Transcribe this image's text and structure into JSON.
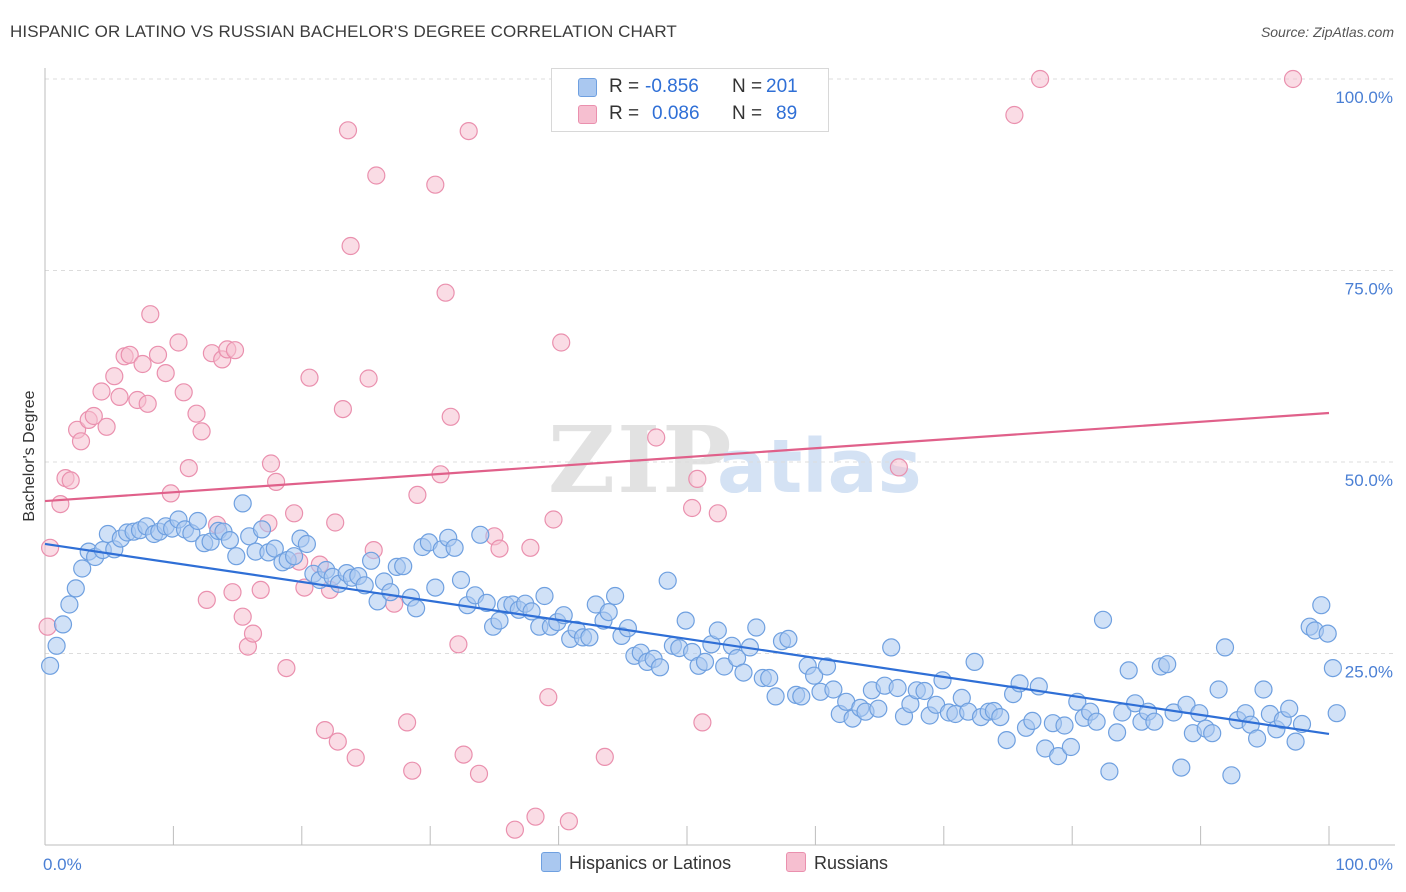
{
  "title": "HISPANIC OR LATINO VS RUSSIAN BACHELOR'S DEGREE CORRELATION CHART",
  "source": "Source: ZipAtlas.com",
  "colors": {
    "blue_fill": "#aac8f0",
    "blue_stroke": "#6fa0e0",
    "blue_line": "#2f6fd6",
    "pink_fill": "#f6bfd0",
    "pink_stroke": "#ea90ae",
    "pink_line": "#e0608a",
    "tick_text": "#4a7fd4",
    "grid": "#dcdcdc"
  },
  "legend": {
    "rows": [
      {
        "r_label": "R =",
        "r_value": "-0.856",
        "n_label": "N =",
        "n_value": "201",
        "swatch": "#aac8f0"
      },
      {
        "r_label": "R =",
        "r_value": "0.086",
        "n_label": "N =",
        "n_value": "89",
        "swatch": "#f6bfd0"
      }
    ]
  },
  "bottom_legend": {
    "hispanic": "Hispanics or Latinos",
    "russian": "Russians"
  },
  "chart_data": {
    "type": "scatter",
    "ylabel": "Bachelor's Degree",
    "xlim": [
      0,
      100
    ],
    "ylim": [
      0,
      100
    ],
    "x_tick_labels": [
      "0.0%",
      "100.0%"
    ],
    "y_tick_values": [
      25,
      50,
      75,
      100
    ],
    "y_tick_labels": [
      "25.0%",
      "50.0%",
      "75.0%",
      "100.0%"
    ],
    "grid": "horizontal dashed",
    "legend_position": "top-center",
    "series": [
      {
        "name": "Hispanics or Latinos",
        "color": "#aac8f0",
        "trend": {
          "x0": 0,
          "y0": 39.3,
          "x1": 100,
          "y1": 14.5
        },
        "points": [
          [
            0.4,
            23.4
          ],
          [
            0.9,
            26.0
          ],
          [
            1.4,
            28.8
          ],
          [
            1.9,
            31.4
          ],
          [
            2.4,
            33.5
          ],
          [
            2.9,
            36.1
          ],
          [
            3.4,
            38.3
          ],
          [
            3.9,
            37.6
          ],
          [
            4.5,
            38.5
          ],
          [
            4.9,
            40.6
          ],
          [
            5.4,
            38.6
          ],
          [
            5.9,
            40.0
          ],
          [
            6.4,
            40.8
          ],
          [
            6.9,
            40.9
          ],
          [
            7.4,
            41.1
          ],
          [
            7.9,
            41.6
          ],
          [
            8.5,
            40.6
          ],
          [
            8.9,
            40.9
          ],
          [
            9.4,
            41.6
          ],
          [
            9.9,
            41.3
          ],
          [
            10.4,
            42.5
          ],
          [
            10.9,
            41.2
          ],
          [
            11.4,
            40.7
          ],
          [
            11.9,
            42.3
          ],
          [
            12.4,
            39.4
          ],
          [
            12.9,
            39.6
          ],
          [
            13.5,
            41.0
          ],
          [
            13.9,
            40.9
          ],
          [
            14.4,
            39.8
          ],
          [
            14.9,
            37.7
          ],
          [
            15.4,
            44.6
          ],
          [
            15.9,
            40.3
          ],
          [
            16.4,
            38.3
          ],
          [
            16.9,
            41.2
          ],
          [
            17.4,
            38.2
          ],
          [
            17.9,
            38.7
          ],
          [
            18.5,
            36.9
          ],
          [
            18.9,
            37.2
          ],
          [
            19.4,
            37.7
          ],
          [
            19.9,
            40.0
          ],
          [
            20.4,
            39.3
          ],
          [
            20.9,
            35.4
          ],
          [
            21.4,
            34.6
          ],
          [
            21.9,
            35.9
          ],
          [
            22.4,
            35.0
          ],
          [
            22.9,
            34.1
          ],
          [
            23.5,
            35.5
          ],
          [
            23.9,
            34.9
          ],
          [
            24.4,
            35.1
          ],
          [
            24.9,
            33.9
          ],
          [
            25.4,
            37.1
          ],
          [
            25.9,
            31.8
          ],
          [
            26.4,
            34.4
          ],
          [
            26.9,
            33.0
          ],
          [
            27.4,
            36.3
          ],
          [
            27.9,
            36.4
          ],
          [
            28.5,
            32.3
          ],
          [
            28.9,
            30.9
          ],
          [
            29.4,
            38.9
          ],
          [
            29.9,
            39.5
          ],
          [
            30.4,
            33.6
          ],
          [
            30.9,
            38.6
          ],
          [
            31.4,
            40.1
          ],
          [
            31.9,
            38.8
          ],
          [
            32.4,
            34.6
          ],
          [
            32.9,
            31.3
          ],
          [
            33.5,
            32.6
          ],
          [
            33.9,
            40.5
          ],
          [
            34.4,
            31.6
          ],
          [
            34.9,
            28.5
          ],
          [
            35.4,
            29.3
          ],
          [
            35.9,
            31.3
          ],
          [
            36.4,
            31.4
          ],
          [
            36.9,
            30.7
          ],
          [
            37.4,
            31.5
          ],
          [
            37.9,
            30.5
          ],
          [
            38.5,
            28.5
          ],
          [
            38.9,
            32.5
          ],
          [
            39.4,
            28.5
          ],
          [
            39.9,
            29.1
          ],
          [
            40.4,
            30.0
          ],
          [
            40.9,
            26.9
          ],
          [
            41.4,
            28.1
          ],
          [
            41.9,
            27.1
          ],
          [
            42.4,
            27.1
          ],
          [
            42.9,
            31.4
          ],
          [
            43.5,
            29.3
          ],
          [
            43.9,
            30.4
          ],
          [
            44.4,
            32.5
          ],
          [
            44.9,
            27.3
          ],
          [
            45.4,
            28.3
          ],
          [
            45.9,
            24.7
          ],
          [
            46.4,
            25.1
          ],
          [
            46.9,
            23.9
          ],
          [
            47.4,
            24.3
          ],
          [
            47.9,
            23.2
          ],
          [
            48.5,
            34.5
          ],
          [
            48.9,
            26.0
          ],
          [
            49.4,
            25.7
          ],
          [
            49.9,
            29.3
          ],
          [
            50.4,
            25.2
          ],
          [
            50.9,
            23.4
          ],
          [
            51.4,
            23.9
          ],
          [
            51.9,
            26.2
          ],
          [
            52.4,
            28.0
          ],
          [
            52.9,
            23.3
          ],
          [
            53.5,
            26.0
          ],
          [
            53.9,
            24.4
          ],
          [
            54.4,
            22.5
          ],
          [
            54.9,
            25.8
          ],
          [
            55.4,
            28.4
          ],
          [
            55.9,
            21.8
          ],
          [
            56.4,
            21.8
          ],
          [
            56.9,
            19.4
          ],
          [
            57.4,
            26.6
          ],
          [
            57.9,
            26.9
          ],
          [
            58.5,
            19.6
          ],
          [
            58.9,
            19.4
          ],
          [
            59.4,
            23.4
          ],
          [
            59.9,
            22.1
          ],
          [
            60.4,
            20.0
          ],
          [
            60.9,
            23.3
          ],
          [
            61.4,
            20.3
          ],
          [
            61.9,
            17.1
          ],
          [
            62.4,
            18.7
          ],
          [
            62.9,
            16.5
          ],
          [
            63.5,
            17.9
          ],
          [
            63.9,
            17.4
          ],
          [
            64.4,
            20.2
          ],
          [
            64.9,
            17.8
          ],
          [
            65.4,
            20.8
          ],
          [
            65.9,
            25.8
          ],
          [
            66.4,
            20.5
          ],
          [
            66.9,
            16.8
          ],
          [
            67.4,
            18.4
          ],
          [
            67.9,
            20.2
          ],
          [
            68.5,
            20.1
          ],
          [
            68.9,
            16.9
          ],
          [
            69.4,
            18.3
          ],
          [
            69.9,
            21.5
          ],
          [
            70.4,
            17.3
          ],
          [
            70.9,
            17.1
          ],
          [
            71.4,
            19.2
          ],
          [
            71.9,
            17.4
          ],
          [
            72.4,
            23.9
          ],
          [
            72.9,
            16.7
          ],
          [
            73.5,
            17.4
          ],
          [
            73.9,
            17.5
          ],
          [
            74.4,
            16.7
          ],
          [
            74.9,
            13.7
          ],
          [
            75.4,
            19.7
          ],
          [
            75.9,
            21.1
          ],
          [
            76.4,
            15.3
          ],
          [
            76.9,
            16.2
          ],
          [
            77.4,
            20.7
          ],
          [
            77.9,
            12.6
          ],
          [
            78.5,
            15.9
          ],
          [
            78.9,
            11.6
          ],
          [
            79.4,
            15.6
          ],
          [
            79.9,
            12.8
          ],
          [
            80.4,
            18.7
          ],
          [
            80.9,
            16.6
          ],
          [
            81.4,
            17.4
          ],
          [
            81.9,
            16.1
          ],
          [
            82.4,
            29.4
          ],
          [
            82.9,
            9.6
          ],
          [
            83.5,
            14.7
          ],
          [
            83.9,
            17.3
          ],
          [
            84.4,
            22.8
          ],
          [
            84.9,
            18.5
          ],
          [
            85.4,
            16.1
          ],
          [
            85.9,
            17.4
          ],
          [
            86.4,
            16.1
          ],
          [
            86.9,
            23.3
          ],
          [
            87.4,
            23.6
          ],
          [
            87.9,
            17.3
          ],
          [
            88.5,
            10.1
          ],
          [
            88.9,
            18.3
          ],
          [
            89.4,
            14.6
          ],
          [
            89.9,
            17.2
          ],
          [
            90.4,
            15.2
          ],
          [
            90.9,
            14.6
          ],
          [
            91.4,
            20.3
          ],
          [
            91.9,
            25.8
          ],
          [
            92.4,
            9.1
          ],
          [
            92.9,
            16.3
          ],
          [
            93.5,
            17.2
          ],
          [
            93.9,
            15.7
          ],
          [
            94.4,
            13.9
          ],
          [
            94.9,
            20.3
          ],
          [
            95.4,
            17.1
          ],
          [
            95.9,
            15.1
          ],
          [
            96.4,
            16.3
          ],
          [
            96.9,
            17.8
          ],
          [
            97.4,
            13.5
          ],
          [
            97.9,
            15.8
          ],
          [
            98.5,
            28.5
          ],
          [
            98.9,
            28.0
          ],
          [
            99.4,
            31.3
          ],
          [
            99.9,
            27.6
          ],
          [
            100.3,
            23.1
          ],
          [
            100.6,
            17.2
          ]
        ]
      },
      {
        "name": "Russians",
        "color": "#f6bfd0",
        "trend": {
          "x0": 0,
          "y0": 44.9,
          "x1": 100,
          "y1": 56.4
        },
        "points": [
          [
            0.2,
            28.5
          ],
          [
            0.4,
            38.8
          ],
          [
            1.2,
            44.5
          ],
          [
            1.6,
            47.9
          ],
          [
            2.0,
            47.6
          ],
          [
            2.5,
            54.2
          ],
          [
            2.8,
            52.7
          ],
          [
            3.4,
            55.5
          ],
          [
            3.8,
            56.0
          ],
          [
            4.4,
            59.2
          ],
          [
            4.8,
            54.6
          ],
          [
            5.4,
            61.2
          ],
          [
            5.8,
            58.5
          ],
          [
            6.2,
            63.8
          ],
          [
            6.6,
            64.0
          ],
          [
            7.2,
            58.1
          ],
          [
            7.6,
            62.8
          ],
          [
            8.0,
            57.6
          ],
          [
            8.2,
            69.3
          ],
          [
            8.8,
            64.0
          ],
          [
            9.4,
            61.6
          ],
          [
            9.8,
            45.9
          ],
          [
            10.4,
            65.6
          ],
          [
            10.8,
            59.1
          ],
          [
            11.2,
            49.2
          ],
          [
            11.8,
            56.3
          ],
          [
            12.2,
            54.0
          ],
          [
            12.6,
            32.0
          ],
          [
            13.0,
            64.2
          ],
          [
            13.4,
            41.8
          ],
          [
            13.8,
            63.4
          ],
          [
            14.2,
            64.7
          ],
          [
            14.6,
            33.0
          ],
          [
            14.8,
            64.6
          ],
          [
            15.4,
            29.8
          ],
          [
            15.8,
            25.9
          ],
          [
            16.2,
            27.6
          ],
          [
            16.8,
            33.3
          ],
          [
            17.4,
            42.0
          ],
          [
            17.6,
            49.8
          ],
          [
            18.0,
            47.4
          ],
          [
            18.8,
            23.1
          ],
          [
            19.4,
            43.3
          ],
          [
            19.8,
            37.0
          ],
          [
            20.2,
            33.6
          ],
          [
            20.6,
            61.0
          ],
          [
            21.4,
            36.6
          ],
          [
            21.8,
            15.0
          ],
          [
            22.2,
            33.3
          ],
          [
            22.6,
            42.1
          ],
          [
            22.8,
            13.5
          ],
          [
            23.2,
            56.9
          ],
          [
            23.6,
            93.3
          ],
          [
            23.8,
            78.2
          ],
          [
            24.2,
            11.4
          ],
          [
            25.2,
            60.9
          ],
          [
            25.6,
            38.5
          ],
          [
            25.8,
            87.4
          ],
          [
            27.2,
            31.5
          ],
          [
            28.2,
            16.0
          ],
          [
            28.6,
            9.7
          ],
          [
            29.0,
            45.7
          ],
          [
            30.4,
            86.2
          ],
          [
            30.8,
            48.4
          ],
          [
            31.2,
            72.1
          ],
          [
            31.6,
            55.9
          ],
          [
            32.2,
            26.2
          ],
          [
            32.6,
            11.8
          ],
          [
            33.0,
            93.2
          ],
          [
            33.8,
            9.3
          ],
          [
            35.0,
            40.3
          ],
          [
            35.4,
            38.7
          ],
          [
            36.6,
            2.0
          ],
          [
            37.8,
            38.8
          ],
          [
            38.2,
            3.7
          ],
          [
            39.2,
            19.3
          ],
          [
            39.6,
            42.5
          ],
          [
            40.2,
            65.6
          ],
          [
            40.8,
            3.1
          ],
          [
            43.6,
            11.5
          ],
          [
            47.6,
            53.2
          ],
          [
            50.4,
            44.0
          ],
          [
            50.8,
            47.8
          ],
          [
            51.2,
            16.0
          ],
          [
            52.4,
            43.3
          ],
          [
            75.5,
            95.3
          ],
          [
            77.5,
            100.0
          ],
          [
            97.2,
            100.0
          ],
          [
            66.5,
            49.3
          ]
        ]
      }
    ]
  }
}
